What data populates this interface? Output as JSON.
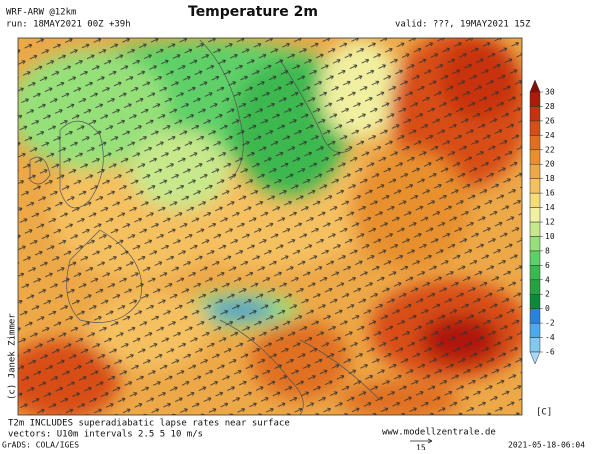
{
  "header": {
    "model": "WRF-ARW @12km",
    "run": "run: 18MAY2021 00Z +39h",
    "title": "Temperature 2m",
    "valid": "valid: ???, 19MAY2021 15Z"
  },
  "colorbar": {
    "ticks": [
      -6,
      -4,
      -2,
      0,
      2,
      4,
      6,
      8,
      10,
      12,
      14,
      16,
      18,
      20,
      22,
      24,
      26,
      28,
      30
    ],
    "colors": [
      "#a6d8ff",
      "#82c8f0",
      "#4fa8e8",
      "#2b82d8",
      "#0a8a3a",
      "#28a040",
      "#3cb850",
      "#5fd068",
      "#96e07a",
      "#c8e88c",
      "#f0f0a0",
      "#f5dc78",
      "#f5c060",
      "#eda848",
      "#e8902e",
      "#e07020",
      "#d84e18",
      "#c83010",
      "#b01808",
      "#8c0a04"
    ],
    "unit": "[C]"
  },
  "credit": "(c) Janek Zimmer",
  "footer": {
    "note": "T2m INCLUDES superadiabatic lapse rates near surface",
    "vectors": "vectors: U10m intervals 2.5 5 10 m/s",
    "website": "www.modellzentrale.de",
    "reference_vector": "15",
    "grads": "GrADS: COLA/IGES",
    "timestamp": "2021-05-18-06:04"
  }
}
